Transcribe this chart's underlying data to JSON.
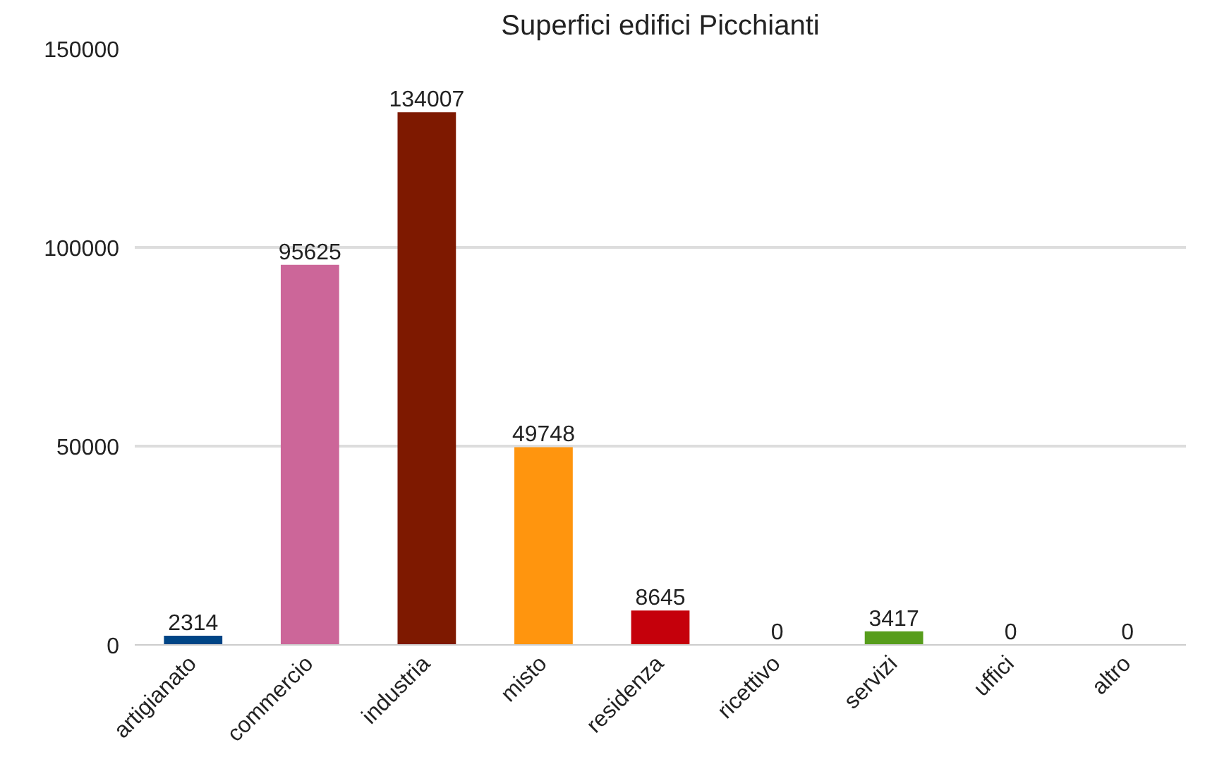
{
  "chart_data": {
    "type": "bar",
    "title": "Superfici edifici Picchianti",
    "categories": [
      "artigianato",
      "commercio",
      "industria",
      "misto",
      "residenza",
      "ricettivo",
      "servizi",
      "uffici",
      "altro"
    ],
    "values": [
      2314,
      95625,
      134007,
      49748,
      8645,
      0,
      3417,
      0,
      0
    ],
    "colors": [
      "#004586",
      "#cc6699",
      "#7e1900",
      "#ff950e",
      "#c5000b",
      "#83caff",
      "#579d1c",
      "#ffd320",
      "#314004"
    ],
    "ylim": [
      0,
      150000
    ],
    "yticks": [
      0,
      50000,
      100000,
      150000
    ],
    "grid": "y",
    "data_labels": true
  }
}
